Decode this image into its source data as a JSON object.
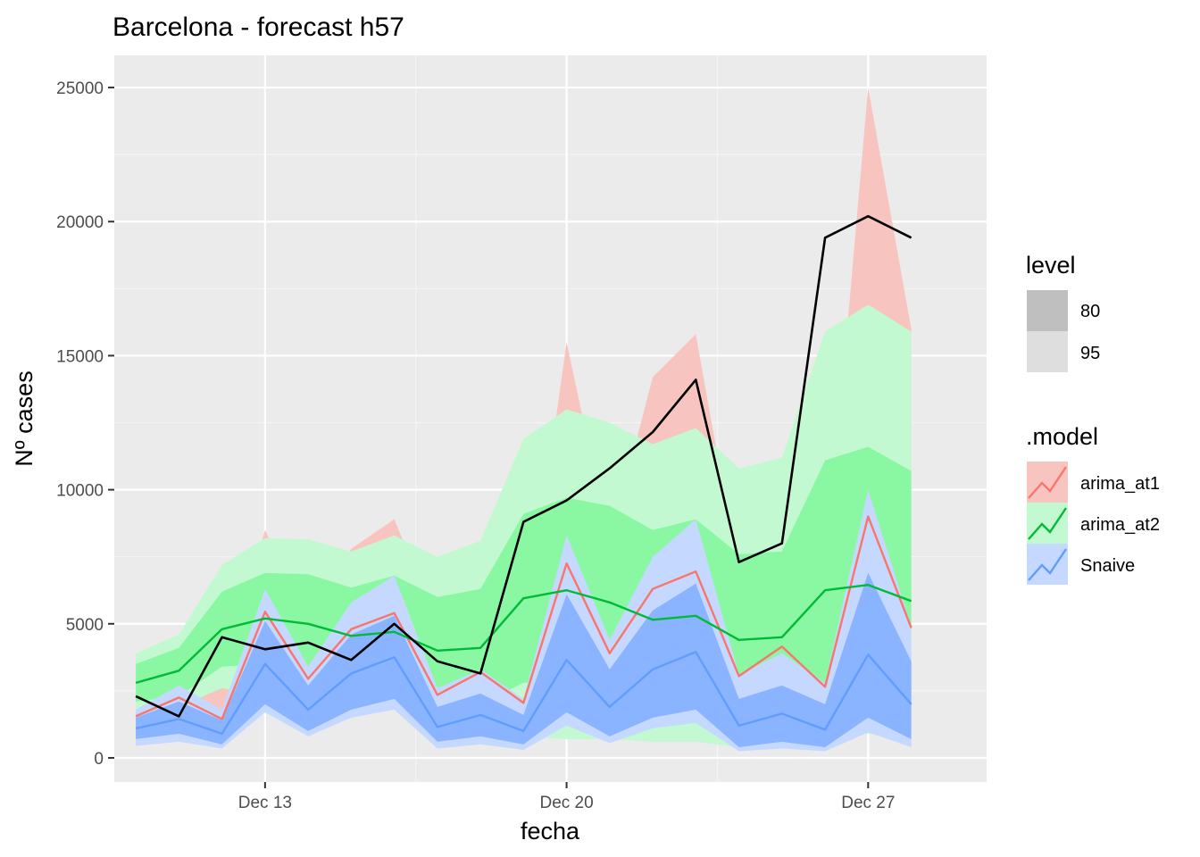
{
  "chart_data": {
    "type": "line",
    "title": "Barcelona - forecast h57",
    "xlabel": "fecha",
    "ylabel": "Nº cases",
    "x_ticks": [
      "Dec 13",
      "Dec 20",
      "Dec 27"
    ],
    "y_ticks": [
      "0",
      "5000",
      "10000",
      "15000",
      "20000",
      "25000"
    ],
    "ylim": [
      -900,
      26200
    ],
    "xlim": [
      "Dec 09 12:00",
      "Dec 29 18:00"
    ],
    "grid": true,
    "legend_position": "right",
    "x": [
      "Dec 10",
      "Dec 11",
      "Dec 12",
      "Dec 13",
      "Dec 14",
      "Dec 15",
      "Dec 16",
      "Dec 17",
      "Dec 18",
      "Dec 19",
      "Dec 20",
      "Dec 21",
      "Dec 22",
      "Dec 23",
      "Dec 24",
      "Dec 25",
      "Dec 26",
      "Dec 27",
      "Dec 28",
      "Dec 29"
    ],
    "actual": {
      "color": "#000000",
      "values": [
        2300,
        1550,
        4500,
        4050,
        4300,
        3650,
        5000,
        3600,
        3150,
        8800,
        9600,
        10800,
        12150,
        14100,
        7300,
        8000,
        19400,
        20200,
        19400,
        null
      ]
    },
    "series": [
      {
        "name": "arima_at1",
        "color": "#F8766D",
        "fill": "#F8C4C0",
        "mean": [
          1550,
          2250,
          1450,
          5450,
          2950,
          4800,
          5400,
          2350,
          3200,
          2050,
          7250,
          3900,
          6300,
          6950,
          3050,
          4150,
          2650,
          9000,
          4850,
          null
        ],
        "lo95": [
          700,
          1000,
          500,
          2500,
          1100,
          2000,
          2500,
          500,
          1000,
          700,
          2500,
          800,
          2200,
          2500,
          700,
          1500,
          500,
          2500,
          900,
          null
        ],
        "hi95": [
          3200,
          3800,
          3000,
          8500,
          5000,
          7800,
          8900,
          5000,
          6000,
          4000,
          15500,
          8000,
          14200,
          15800,
          6800,
          7900,
          6500,
          25000,
          16000,
          null
        ]
      },
      {
        "name": "arima_at2",
        "color": "#00BA38",
        "fill": "#C3F9D1",
        "fill80": "#8AF8A3",
        "mean": [
          2800,
          3250,
          4800,
          5200,
          5000,
          4550,
          4700,
          4000,
          4100,
          5950,
          6250,
          5800,
          5150,
          5300,
          4400,
          4500,
          6250,
          6450,
          5850,
          null
        ],
        "lo80": [
          2100,
          2300,
          3400,
          3500,
          3200,
          2700,
          3100,
          2200,
          2000,
          2800,
          2800,
          2200,
          1700,
          1800,
          1200,
          1300,
          2500,
          2600,
          1900,
          null
        ],
        "hi80": [
          3500,
          4100,
          6200,
          6900,
          6850,
          6350,
          6800,
          6000,
          6300,
          9100,
          9700,
          9400,
          8500,
          8900,
          7600,
          7700,
          11100,
          11600,
          10700,
          null
        ],
        "lo95": [
          1700,
          1900,
          2600,
          2300,
          2000,
          1700,
          1800,
          1200,
          900,
          800,
          700,
          700,
          600,
          600,
          400,
          400,
          700,
          900,
          700,
          null
        ],
        "hi95": [
          3900,
          4600,
          7200,
          8200,
          8150,
          7700,
          8300,
          7500,
          8100,
          11900,
          13000,
          12500,
          11700,
          12300,
          10800,
          11200,
          15900,
          16900,
          15900,
          null
        ]
      },
      {
        "name": "Snaive",
        "color": "#619CFF",
        "fill": "#C5D8FF",
        "fill80": "#8AB4FF",
        "mean": [
          1100,
          1450,
          900,
          3500,
          1800,
          3150,
          3750,
          1150,
          1600,
          1000,
          3650,
          1900,
          3300,
          3950,
          1200,
          1650,
          1050,
          3850,
          2000,
          null
        ],
        "lo80": [
          700,
          900,
          500,
          2000,
          1000,
          1800,
          2200,
          600,
          800,
          500,
          1700,
          800,
          1500,
          1800,
          400,
          600,
          400,
          1500,
          700,
          null
        ],
        "hi80": [
          1500,
          2100,
          1400,
          5100,
          2700,
          4600,
          5300,
          1900,
          2400,
          1600,
          6100,
          3300,
          5500,
          6500,
          2200,
          2700,
          2000,
          6900,
          3600,
          null
        ],
        "lo95": [
          450,
          600,
          350,
          1700,
          800,
          1500,
          1800,
          350,
          500,
          300,
          1200,
          550,
          1100,
          1300,
          250,
          350,
          250,
          950,
          400,
          null
        ],
        "hi95": [
          1800,
          2700,
          1800,
          6300,
          3400,
          5800,
          6800,
          2600,
          3300,
          2200,
          8300,
          4400,
          7500,
          8900,
          3100,
          3900,
          2800,
          10000,
          4900,
          null
        ]
      }
    ]
  },
  "legend": {
    "level_title": "level",
    "levels": [
      "80",
      "95"
    ],
    "model_title": ".model",
    "models": [
      "arima_at1",
      "arima_at2",
      "Snaive"
    ]
  }
}
